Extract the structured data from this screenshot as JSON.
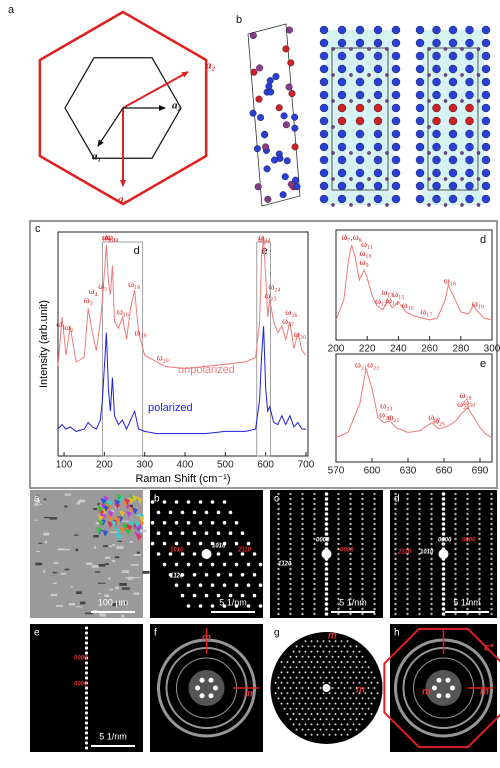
{
  "figure": {
    "top_a": {
      "label": "a",
      "vectors": [
        "a₂",
        "a₂",
        "a₁",
        "a₁"
      ]
    },
    "top_b": {
      "label": "b"
    },
    "tem": [
      {
        "label": "a",
        "scale": "100 μm"
      },
      {
        "label": "b",
        "scale": "5 1/nm",
        "spots": [
          "10̅10",
          "2̅110",
          "1̅010",
          "1̅1̅20"
        ]
      },
      {
        "label": "c",
        "scale": "5 1/nm",
        "spots": [
          "0000",
          "0006",
          "1̅1̅20"
        ]
      },
      {
        "label": "d",
        "scale": "5 1/nm",
        "spots": [
          "0000",
          "0006",
          "2̅11̅0",
          "10̅10"
        ]
      },
      {
        "label": "e",
        "scale": "5 1/nm",
        "spots": [
          "0006",
          "0000"
        ]
      },
      {
        "label": "f",
        "spots": [
          "m",
          "m"
        ]
      },
      {
        "label": "g",
        "spots": [
          "m",
          "m"
        ]
      },
      {
        "label": "h",
        "spots": [
          "m",
          "m",
          "c*"
        ]
      }
    ]
  },
  "chart_data": [
    {
      "type": "line",
      "label": "c",
      "xlabel": "Raman Shift (cm⁻¹)",
      "ylabel": "Intensity (arb.unit)",
      "xlim": [
        85,
        705
      ],
      "xticks": [
        100,
        200,
        300,
        400,
        500,
        600,
        700
      ],
      "ylim": [
        0,
        100
      ],
      "x": [
        85,
        95,
        105,
        115,
        130,
        150,
        160,
        170,
        180,
        190,
        195,
        200,
        205,
        210,
        215,
        220,
        225,
        235,
        245,
        255,
        265,
        275,
        285,
        300,
        330,
        350,
        400,
        450,
        500,
        550,
        575,
        585,
        590,
        595,
        600,
        605,
        610,
        620,
        630,
        640,
        650,
        660,
        670,
        680,
        690,
        700
      ],
      "series": [
        {
          "name": "unpolarized",
          "color": "#f07a7a",
          "values": [
            40,
            62,
            45,
            58,
            42,
            44,
            66,
            55,
            47,
            60,
            70,
            82,
            94,
            78,
            72,
            85,
            60,
            57,
            62,
            52,
            66,
            74,
            55,
            45,
            42,
            40,
            39,
            40,
            41,
            42,
            44,
            60,
            90,
            97,
            80,
            62,
            70,
            60,
            55,
            58,
            52,
            60,
            48,
            55,
            47,
            45
          ]
        },
        {
          "name": "polarized",
          "color": "#1e1ee0",
          "values": [
            12,
            14,
            12,
            13,
            11,
            12,
            15,
            13,
            12,
            16,
            25,
            40,
            55,
            30,
            20,
            35,
            18,
            14,
            16,
            12,
            16,
            20,
            12,
            11,
            10,
            10,
            10,
            10,
            11,
            11,
            12,
            25,
            45,
            58,
            30,
            20,
            22,
            15,
            14,
            18,
            14,
            18,
            13,
            15,
            12,
            12
          ]
        }
      ],
      "peaks": [
        {
          "label": "ω₁",
          "x": 92
        },
        {
          "label": "ω₂",
          "x": 112
        },
        {
          "label": "ω₃",
          "x": 160
        },
        {
          "label": "ω₄",
          "x": 172
        },
        {
          "label": "ω₅",
          "x": 196
        },
        {
          "label": "ω₇",
          "x": 205
        },
        {
          "label": "ω₈",
          "x": 206
        },
        {
          "label": "ω₁₀",
          "x": 216
        },
        {
          "label": "ω₁₁",
          "x": 222
        },
        {
          "label": "ω₁₆",
          "x": 246
        },
        {
          "label": "ω₁₈",
          "x": 274
        },
        {
          "label": "ω₁₉",
          "x": 290
        },
        {
          "label": "ω₂₀",
          "x": 345
        },
        {
          "label": "ω₂₁",
          "x": 596
        },
        {
          "label": "ω₂₂",
          "x": 597
        },
        {
          "label": "ω₂₃",
          "x": 612
        },
        {
          "label": "ω₂₄",
          "x": 622
        },
        {
          "label": "ω₂₇",
          "x": 656
        },
        {
          "label": "ω₂₆",
          "x": 664
        },
        {
          "label": "ω₃₀",
          "x": 685
        }
      ],
      "boxes": [
        {
          "label": "d",
          "xlim": [
            195,
            295
          ]
        },
        {
          "label": "e",
          "xlim": [
            578,
            612
          ]
        }
      ]
    },
    {
      "type": "line",
      "label": "d",
      "xlim": [
        200,
        300
      ],
      "xticks": [
        200,
        220,
        240,
        260,
        280,
        300
      ],
      "ylim": [
        0,
        110
      ],
      "x": [
        200,
        205,
        208,
        210,
        212,
        215,
        218,
        220,
        223,
        226,
        230,
        233,
        236,
        240,
        245,
        250,
        255,
        260,
        265,
        270,
        272,
        275,
        280,
        285,
        288,
        290,
        295,
        300
      ],
      "series": [
        {
          "color": "#f07a7a",
          "values": [
            20,
            40,
            80,
            95,
            85,
            60,
            70,
            62,
            45,
            35,
            30,
            40,
            32,
            38,
            28,
            24,
            22,
            20,
            22,
            40,
            55,
            45,
            28,
            26,
            35,
            30,
            22,
            20
          ]
        }
      ],
      "peaks": [
        {
          "label": "ω₇,ω₈",
          "x": 210
        },
        {
          "label": "ω₉",
          "x": 218
        },
        {
          "label": "ω₁₀",
          "x": 219
        },
        {
          "label": "ω₁₁",
          "x": 220
        },
        {
          "label": "ω₁₂",
          "x": 229
        },
        {
          "label": "ω₁₃",
          "x": 233
        },
        {
          "label": "ω₁₄",
          "x": 236
        },
        {
          "label": "ω₁₅",
          "x": 240
        },
        {
          "label": "ω₁₆",
          "x": 246
        },
        {
          "label": "ω₁₇",
          "x": 258
        },
        {
          "label": "ω₁₈",
          "x": 273
        },
        {
          "label": "ω₁₉",
          "x": 291
        }
      ]
    },
    {
      "type": "line",
      "label": "e",
      "xlim": [
        570,
        700
      ],
      "xticks": [
        570,
        600,
        630,
        660,
        690
      ],
      "ylim": [
        0,
        110
      ],
      "x": [
        570,
        580,
        590,
        595,
        600,
        605,
        610,
        615,
        620,
        630,
        640,
        650,
        655,
        660,
        665,
        670,
        675,
        680,
        685,
        690,
        695,
        700
      ],
      "series": [
        {
          "color": "#f07a7a",
          "values": [
            25,
            30,
            60,
            95,
            75,
            45,
            40,
            42,
            35,
            30,
            32,
            40,
            34,
            35,
            38,
            42,
            50,
            55,
            45,
            35,
            28,
            25
          ]
        }
      ],
      "peaks": [
        {
          "label": "ω₂₁ω₂₂",
          "x": 596
        },
        {
          "label": "ω₂₄",
          "x": 611
        },
        {
          "label": "ω₂₃",
          "x": 612
        },
        {
          "label": "ω₂₅",
          "x": 618
        },
        {
          "label": "ω₂₇",
          "x": 652
        },
        {
          "label": "ω₂₆",
          "x": 656
        },
        {
          "label": "ω₂₈",
          "x": 676
        },
        {
          "label": "ω₂₉",
          "x": 678
        },
        {
          "label": "ω₃₀",
          "x": 681
        }
      ]
    }
  ]
}
